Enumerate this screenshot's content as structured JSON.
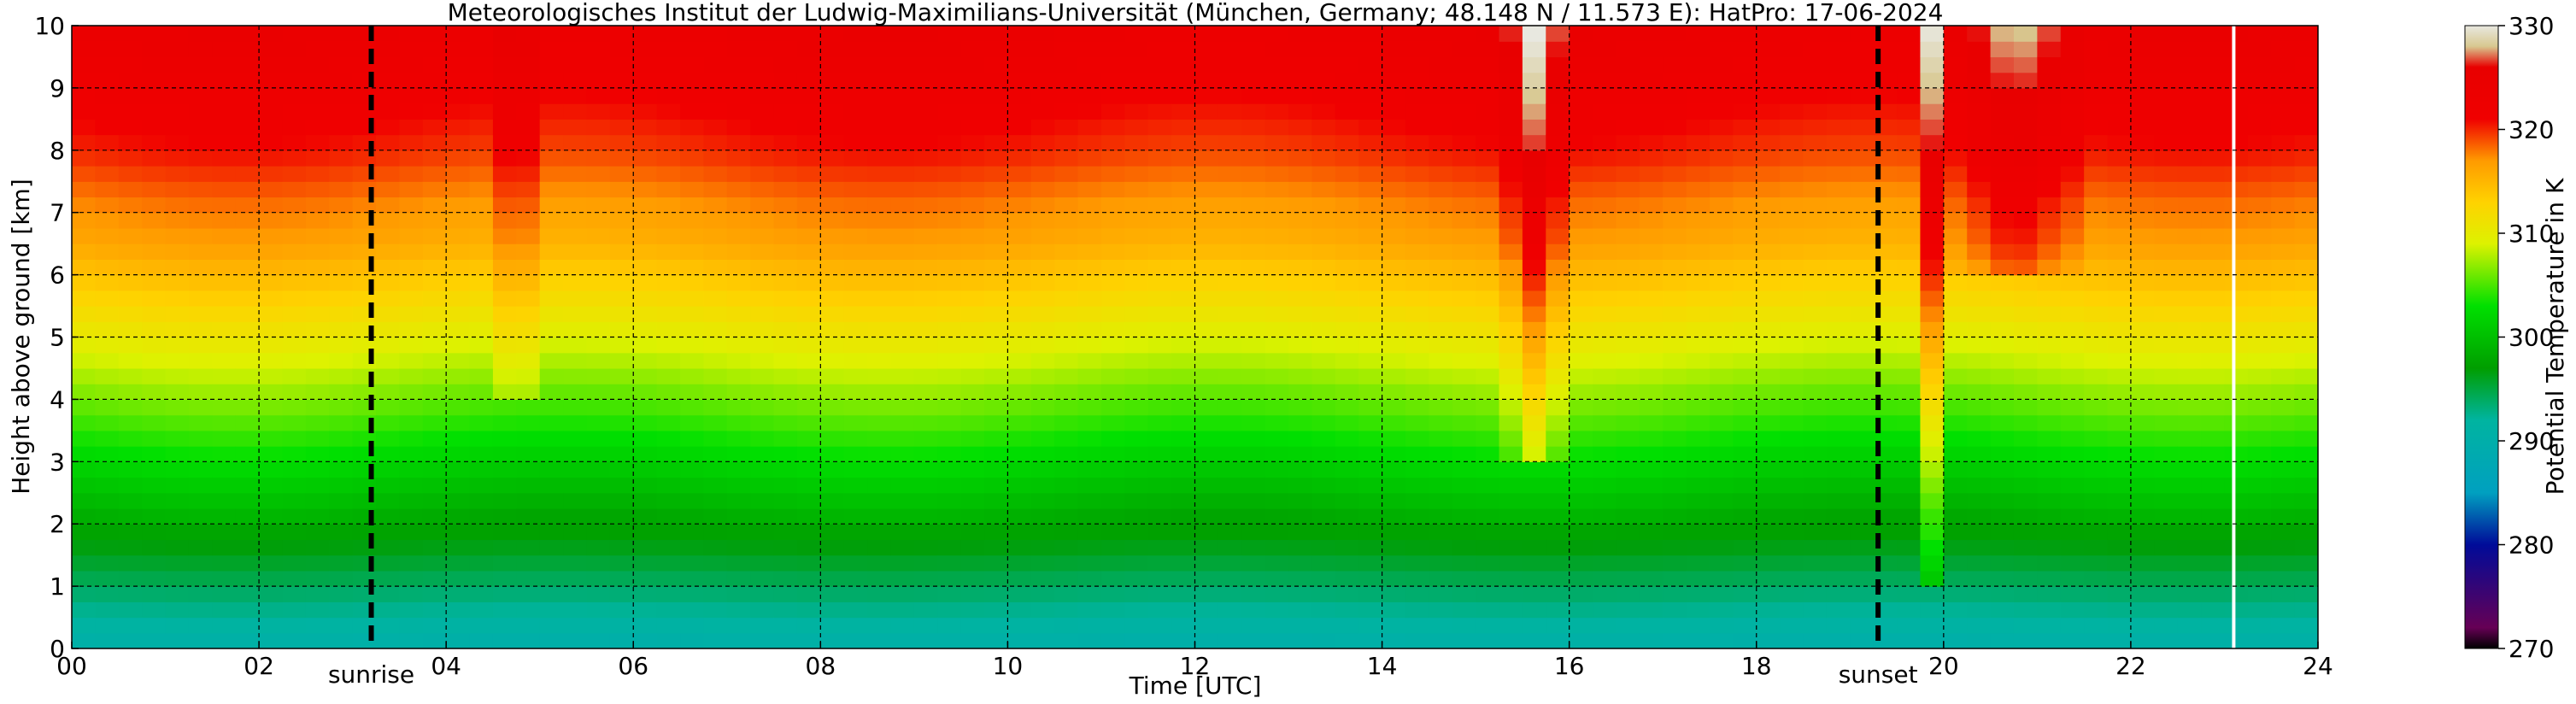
{
  "chart_data": {
    "type": "heatmap",
    "title": "Meteorologisches Institut der Ludwig-Maximilians-Universität (München, Germany; 48.148 N / 11.573 E):    HatPro: 17-06-2024",
    "xlabel": "Time [UTC]",
    "ylabel": "Height above ground [km]",
    "xlim": [
      0,
      24
    ],
    "ylim": [
      0,
      10
    ],
    "x_ticks": [
      "00",
      "02",
      "04",
      "06",
      "08",
      "10",
      "12",
      "14",
      "16",
      "18",
      "20",
      "22",
      "24"
    ],
    "y_ticks": [
      "0",
      "1",
      "2",
      "3",
      "4",
      "5",
      "6",
      "7",
      "8",
      "9",
      "10"
    ],
    "grid": true,
    "events": [
      {
        "label": "sunrise",
        "time": 3.2
      },
      {
        "label": "sunset",
        "time": 19.3
      }
    ],
    "data_gap_time": 23.1,
    "colorbar": {
      "label": "Potential Temperature in K",
      "range": [
        270,
        330
      ],
      "ticks": [
        "270",
        "280",
        "290",
        "300",
        "310",
        "320",
        "330"
      ],
      "stops": [
        {
          "value": 270,
          "color": "#000000"
        },
        {
          "value": 272,
          "color": "#660055"
        },
        {
          "value": 280,
          "color": "#000b99"
        },
        {
          "value": 285,
          "color": "#00a0c0"
        },
        {
          "value": 292,
          "color": "#00b4a0"
        },
        {
          "value": 297,
          "color": "#009e00"
        },
        {
          "value": 303,
          "color": "#00e000"
        },
        {
          "value": 309,
          "color": "#ddf200"
        },
        {
          "value": 313,
          "color": "#ffd200"
        },
        {
          "value": 317,
          "color": "#ff9a00"
        },
        {
          "value": 321,
          "color": "#f00000"
        },
        {
          "value": 326,
          "color": "#e80000"
        },
        {
          "value": 328,
          "color": "#d8c890"
        },
        {
          "value": 330,
          "color": "#e8e8e0"
        }
      ]
    },
    "profile_heights_km": [
      0,
      0.5,
      1,
      1.5,
      2,
      2.5,
      3,
      3.5,
      4,
      4.5,
      5,
      5.5,
      6,
      6.5,
      7,
      7.5,
      8,
      8.5,
      9,
      9.5,
      10
    ],
    "base_profile_K": [
      290,
      292,
      294,
      296,
      298,
      300,
      302,
      304,
      306,
      308,
      310,
      312,
      314,
      316,
      317,
      318.5,
      320,
      321,
      322,
      323,
      324
    ],
    "features": [
      {
        "t0": 4.5,
        "t1": 5.0,
        "h_min": 4,
        "delta_K": 4
      },
      {
        "t0": 15.3,
        "t1": 16.0,
        "h_min": 3,
        "delta_K": 6
      },
      {
        "t0": 19.7,
        "t1": 20.0,
        "h_min": 1,
        "delta_K": 8
      },
      {
        "t0": 19.9,
        "t1": 21.6,
        "h_min": 6,
        "delta_K": 5
      }
    ]
  }
}
